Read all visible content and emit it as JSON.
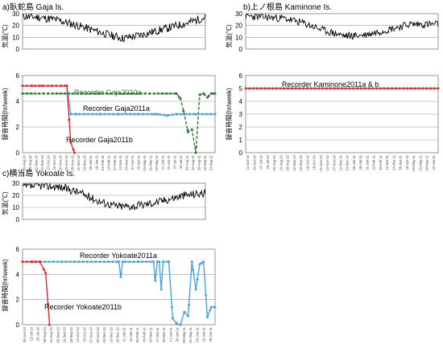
{
  "panels": {
    "a": {
      "title": "a)臥蛇島  Gaja Is."
    },
    "b": {
      "title": "b)上ノ根島  Kaminone Is."
    },
    "c": {
      "title": "c)横当島  Yokoate Is."
    }
  },
  "axis_labels": {
    "temperature": "気温(℃)",
    "recording": "録音時間(hr/week)"
  },
  "colors": {
    "temp_line": "#000000",
    "red": "#e8262b",
    "blue": "#4aa3df",
    "green": "#2e7d32",
    "grid": "#9a9a9a",
    "frame": "#7a7a7a"
  },
  "chart_data": [
    {
      "id": "a-temp",
      "type": "line",
      "ylabel": "気温(℃)",
      "ylim": [
        0,
        30
      ],
      "yticks": [
        0,
        10,
        20,
        30
      ],
      "grid": true,
      "series": [
        {
          "x": [
            0,
            0.08,
            0.18,
            0.3,
            0.45,
            0.55,
            0.65,
            0.8,
            0.92,
            1.0
          ],
          "y": [
            28,
            27,
            25,
            20,
            13,
            9,
            12,
            18,
            23,
            27
          ],
          "noise": 3.5,
          "seed": 11
        }
      ]
    },
    {
      "id": "a-rec",
      "type": "line",
      "ylabel": "録音時間(hr/week)",
      "ylim": [
        0,
        6
      ],
      "yticks": [
        0,
        2,
        4,
        6
      ],
      "grid": true,
      "xticks": [
        "16-Aug-10",
        "29-Aug-10",
        "11-Sep-10",
        "24-Sep-10",
        "07-Oct-10",
        "20-Oct-10",
        "02-Nov-10",
        "15-Nov-10",
        "28-Nov-10",
        "11-Dec-10",
        "24-Dec-10",
        "06-Jan-11",
        "19-Jan-11",
        "01-Feb-11",
        "14-Feb-11",
        "27-Feb-11",
        "12-Mar-11",
        "25-Mar-11",
        "07-Apr-11",
        "20-Apr-11",
        "03-May-11",
        "16-May-11",
        "29-May-11",
        "11-Jun-11",
        "24-Jun-11",
        "07-Jul-11",
        "20-Jul-11",
        "02-Aug-11",
        "15-Aug-11",
        "28-Aug-11",
        "10-Sep-11",
        "23-Sep-11"
      ],
      "series": [
        {
          "name": "Recorder Gaja2010a",
          "color": "#2e7d32",
          "style": "dashed-markers",
          "x": [
            0,
            0.8,
            0.82,
            0.84,
            0.86,
            0.88,
            0.9,
            0.92,
            0.94,
            0.96,
            0.98,
            1.0
          ],
          "y": [
            4.6,
            4.6,
            4.2,
            3.0,
            1.6,
            1.8,
            0.0,
            4.5,
            4.6,
            4.3,
            4.6,
            4.6
          ]
        },
        {
          "name": "Recorder Gaja2011a",
          "color": "#4aa3df",
          "style": "solid-markers",
          "x": [
            0.23,
            0.25,
            0.28,
            0.32,
            0.4,
            0.5,
            0.6,
            0.68,
            0.7,
            0.75,
            0.8,
            0.9,
            1.0
          ],
          "y": [
            5.2,
            3.0,
            3.0,
            3.0,
            3.0,
            3.0,
            3.0,
            3.0,
            3.0,
            2.9,
            3.0,
            3.0,
            3.0
          ]
        },
        {
          "name": "Recorder Gaja2011b",
          "color": "#e8262b",
          "style": "solid-markers",
          "x": [
            0,
            0.05,
            0.1,
            0.15,
            0.2,
            0.23,
            0.25,
            0.27
          ],
          "y": [
            5.2,
            5.2,
            5.2,
            5.2,
            5.2,
            5.2,
            0.8,
            0.0
          ]
        }
      ],
      "annotations": [
        {
          "text": "Recorder Gaja2010a",
          "color": "#2e7d32"
        },
        {
          "text": "Recorder Gaja2011a",
          "color": "#000000"
        },
        {
          "text": "Recorder Gaja2011b",
          "color": "#000000"
        }
      ]
    },
    {
      "id": "b-temp",
      "type": "line",
      "ylabel": "気温(℃)",
      "ylim": [
        0,
        30
      ],
      "yticks": [
        0,
        10,
        20,
        30
      ],
      "grid": true,
      "series": [
        {
          "x": [
            0,
            0.1,
            0.2,
            0.3,
            0.42,
            0.52,
            0.62,
            0.75,
            0.85,
            1.0
          ],
          "y": [
            28,
            27,
            26,
            22,
            15,
            11,
            12,
            17,
            21,
            21
          ],
          "noise": 3.2,
          "seed": 23
        }
      ]
    },
    {
      "id": "b-rec",
      "type": "line",
      "ylabel": "録音時間(hr/week)",
      "ylim": [
        0,
        6
      ],
      "yticks": [
        0,
        1,
        2,
        3,
        4,
        5,
        6
      ],
      "grid": true,
      "xticks": [
        "11-Jun-10",
        "24-Jun-10",
        "07-Jul-10",
        "20-Jul-10",
        "02-Aug-10",
        "15-Aug-10",
        "28-Aug-10",
        "10-Sep-10",
        "23-Sep-10",
        "06-Oct-10",
        "19-Oct-10",
        "01-Nov-10",
        "14-Nov-10",
        "27-Nov-10",
        "10-Dec-10",
        "23-Dec-10",
        "05-Jan-11",
        "18-Jan-11",
        "31-Jan-11",
        "13-Feb-11",
        "26-Feb-11",
        "11-Mar-11",
        "24-Mar-11",
        "06-Apr-11",
        "19-Apr-11",
        "02-May-11",
        "15-May-11",
        "28-May-11",
        "10-Jun-11"
      ],
      "series": [
        {
          "name": "Recorder Kaminone2011a & b",
          "color": "#e8262b",
          "style": "dense-markers",
          "x": [
            0,
            1.0
          ],
          "y": [
            5.0,
            5.0
          ]
        }
      ],
      "annotations": [
        {
          "text": "Recorder Kaminone2011a & b",
          "color": "#000000"
        }
      ]
    },
    {
      "id": "c-temp",
      "type": "line",
      "ylabel": "気温(℃)",
      "ylim": [
        0,
        30
      ],
      "yticks": [
        0,
        10,
        20,
        30
      ],
      "grid": true,
      "series": [
        {
          "x": [
            0,
            0.1,
            0.2,
            0.3,
            0.42,
            0.52,
            0.62,
            0.75,
            0.88,
            1.0
          ],
          "y": [
            27,
            28,
            27,
            23,
            15,
            11,
            11,
            15,
            20,
            22
          ],
          "noise": 3.4,
          "seed": 37
        }
      ]
    },
    {
      "id": "c-rec",
      "type": "line",
      "ylabel": "録音時間(hr/week)",
      "ylim": [
        0,
        6
      ],
      "yticks": [
        0,
        2,
        4,
        6
      ],
      "grid": true,
      "xticks": [
        "30-Jun-10",
        "13-Jul-10",
        "26-Jul-10",
        "08-Aug-10",
        "21-Aug-10",
        "03-Sep-10",
        "16-Sep-10",
        "29-Sep-10",
        "12-Oct-10",
        "25-Oct-10",
        "07-Nov-10",
        "20-Nov-10",
        "03-Dec-10",
        "16-Dec-10",
        "29-Dec-10",
        "11-Jan-11",
        "24-Jan-11",
        "06-Feb-11",
        "19-Feb-11",
        "04-Mar-11",
        "17-Mar-11",
        "30-Mar-11",
        "12-Apr-11",
        "25-Apr-11",
        "08-May-11",
        "21-May-11",
        "03-Jun-11",
        "16-Jun-11",
        "29-Jun-11"
      ],
      "series": [
        {
          "name": "Recorder Yokoate2011a",
          "color": "#4aa3df",
          "style": "solid-markers",
          "x": [
            0.05,
            0.5,
            0.51,
            0.52,
            0.6,
            0.68,
            0.69,
            0.7,
            0.71,
            0.72,
            0.73,
            0.76,
            0.78,
            0.8,
            0.82,
            0.84,
            0.86,
            0.88,
            0.9,
            0.92,
            0.94,
            0.96,
            0.98,
            1.0
          ],
          "y": [
            5.0,
            5.0,
            3.8,
            5.0,
            5.0,
            5.0,
            3.5,
            5.0,
            5.0,
            2.8,
            5.0,
            5.0,
            0.5,
            0.1,
            0.0,
            1.0,
            0.7,
            5.0,
            2.8,
            4.8,
            5.0,
            0.6,
            1.4,
            1.4
          ]
        },
        {
          "name": "Recorder Yokoate2011b",
          "color": "#e8262b",
          "style": "solid-markers",
          "x": [
            0,
            0.05,
            0.09,
            0.12,
            0.14
          ],
          "y": [
            5.0,
            5.0,
            5.0,
            4.1,
            0.0
          ]
        }
      ],
      "annotations": [
        {
          "text": "Recorder Yokoate2011a",
          "color": "#000000"
        },
        {
          "text": "Recorder Yokoate2011b",
          "color": "#000000"
        }
      ]
    }
  ]
}
